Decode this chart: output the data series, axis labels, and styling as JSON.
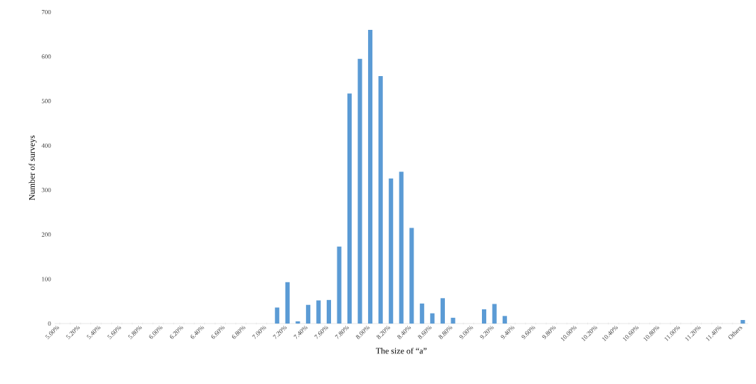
{
  "chart_data": {
    "type": "bar",
    "xlabel": "The size of “a”",
    "ylabel": "Number of surveys",
    "categories": [
      "5.00%",
      null,
      "5.20%",
      null,
      "5.40%",
      null,
      "5.60%",
      null,
      "5.80%",
      null,
      "6.00%",
      null,
      "6.20%",
      null,
      "6.40%",
      null,
      "6.60%",
      null,
      "6.80%",
      null,
      "7.00%",
      null,
      "7.20%",
      null,
      "7.40%",
      null,
      "7.60%",
      null,
      "7.80%",
      null,
      "8.00%",
      null,
      "8.20%",
      null,
      "8.40%",
      null,
      "8.60%",
      null,
      "8.80%",
      null,
      "9.00%",
      null,
      "9.20%",
      null,
      "9.40%",
      null,
      "9.60%",
      null,
      "9.80%",
      null,
      "10.00%",
      null,
      "10.20%",
      null,
      "10.40%",
      null,
      "10.60%",
      null,
      "10.80%",
      null,
      "11.00%",
      null,
      "11.20%",
      null,
      "11.40%",
      null,
      "Others"
    ],
    "values": [
      0,
      0,
      0,
      0,
      0,
      0,
      0,
      0,
      0,
      0,
      0,
      0,
      0,
      0,
      0,
      0,
      0,
      0,
      0,
      0,
      0,
      36,
      93,
      5,
      42,
      52,
      53,
      173,
      517,
      595,
      660,
      556,
      326,
      341,
      215,
      45,
      23,
      57,
      13,
      0,
      0,
      32,
      44,
      17,
      0,
      0,
      0,
      0,
      0,
      0,
      0,
      0,
      0,
      0,
      0,
      0,
      0,
      0,
      0,
      0,
      0,
      0,
      0,
      0,
      0,
      0,
      8
    ],
    "color": "#5b9bd5",
    "ylim": [
      0,
      700
    ],
    "yticks": [
      0,
      100,
      200,
      300,
      400,
      500,
      600,
      700
    ]
  }
}
